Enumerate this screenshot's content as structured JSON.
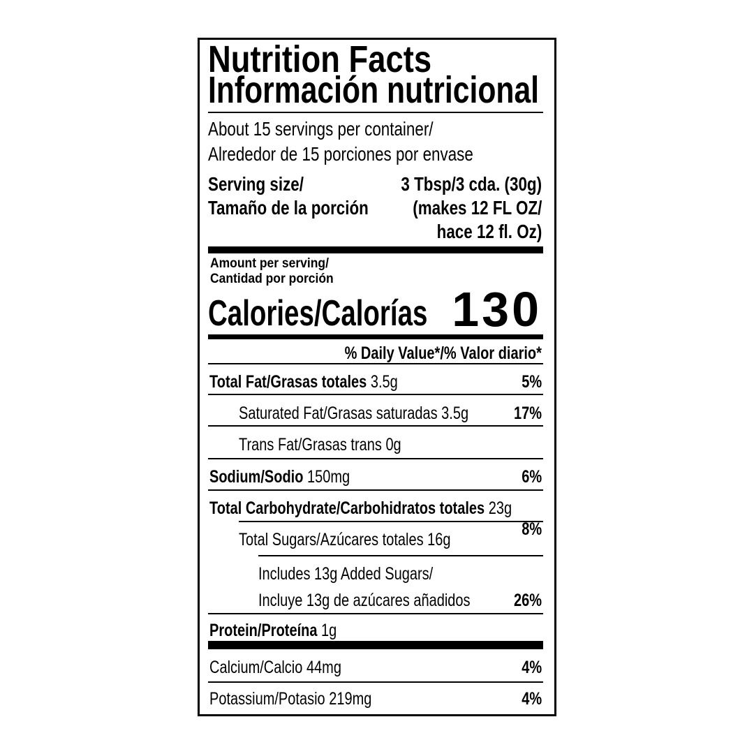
{
  "title": {
    "en": "Nutrition Facts",
    "es": "Información nutricional"
  },
  "servings": {
    "line1": "About 15 servings per container/",
    "line2": "Alrededor de 15 porciones por envase"
  },
  "serving_size": {
    "label1": "Serving size/",
    "label2": "Tamaño de la porción",
    "value1": "3 Tbsp/3 cda. (30g)",
    "value2": "(makes 12 FL OZ/",
    "value3": "hace 12 fl. Oz)"
  },
  "amount": {
    "line1": "Amount per serving/",
    "line2": "Cantidad por porción"
  },
  "calories": {
    "label": "Calories/Calorías",
    "value": "130"
  },
  "daily_value_header": "% Daily Value*/% Valor diario*",
  "nutrients": [
    {
      "name": "Total Fat/Grasas totales",
      "amount": "3.5g",
      "dv": "5%",
      "bold": true,
      "indent": 0
    },
    {
      "name": "Saturated Fat/Grasas saturadas",
      "amount": "3.5g",
      "dv": "17%",
      "bold": false,
      "indent": 1
    },
    {
      "name": "Trans Fat/Grasas trans",
      "amount": "0g",
      "dv": "",
      "bold": false,
      "indent": 1
    },
    {
      "name": "Sodium/Sodio",
      "amount": "150mg",
      "dv": "6%",
      "bold": true,
      "indent": 0
    },
    {
      "name": "Total Carbohydrate/Carbohidratos totales",
      "amount": "23g",
      "dv": "8%",
      "bold": true,
      "indent": 0
    },
    {
      "name": "Total Sugars/Azúcares totales",
      "amount": "16g",
      "dv": "",
      "bold": false,
      "indent": 1
    },
    {
      "name": "Protein/Proteína",
      "amount": "1g",
      "dv": "",
      "bold": true,
      "indent": 0
    },
    {
      "name": "Calcium/Calcio",
      "amount": "44mg",
      "dv": "4%",
      "bold": false,
      "indent": 0
    },
    {
      "name": "Potassium/Potasio",
      "amount": "219mg",
      "dv": "4%",
      "bold": false,
      "indent": 0
    }
  ],
  "added_sugars": {
    "line1": "Includes 13g Added Sugars/",
    "line2": "Incluye 13g de azúcares añadidos",
    "dv": "26%"
  }
}
